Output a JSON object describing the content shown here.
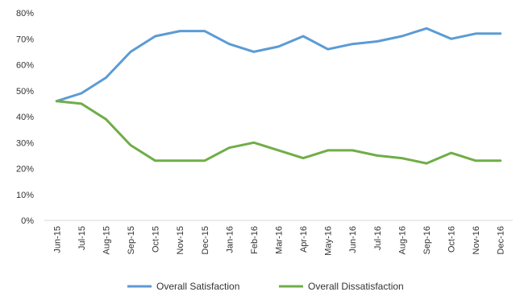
{
  "chart_data": {
    "type": "line",
    "title": "",
    "xlabel": "",
    "ylabel": "",
    "x": [
      "Jun-15",
      "Jul-15",
      "Aug-15",
      "Sep-15",
      "Oct-15",
      "Nov-15",
      "Dec-15",
      "Jan-16",
      "Feb-16",
      "Mar-16",
      "Apr-16",
      "May-16",
      "Jun-16",
      "Jul-16",
      "Aug-16",
      "Sep-16",
      "Oct-16",
      "Nov-16",
      "Dec-16"
    ],
    "y_ticks": [
      "0%",
      "10%",
      "20%",
      "30%",
      "40%",
      "50%",
      "60%",
      "70%",
      "80%"
    ],
    "ylim": [
      0,
      80
    ],
    "y_unit": "%",
    "grid": false,
    "legend_position": "bottom",
    "series": [
      {
        "name": "Overall Satisfaction",
        "color": "#5B9BD5",
        "values": [
          46,
          49,
          55,
          65,
          71,
          73,
          73,
          68,
          65,
          67,
          71,
          66,
          68,
          69,
          71,
          74,
          70,
          72,
          72
        ]
      },
      {
        "name": "Overall Dissatisfaction",
        "color": "#70AD47",
        "values": [
          46,
          45,
          39,
          29,
          23,
          23,
          23,
          28,
          30,
          27,
          24,
          27,
          27,
          25,
          24,
          22,
          26,
          23,
          23
        ]
      }
    ]
  }
}
